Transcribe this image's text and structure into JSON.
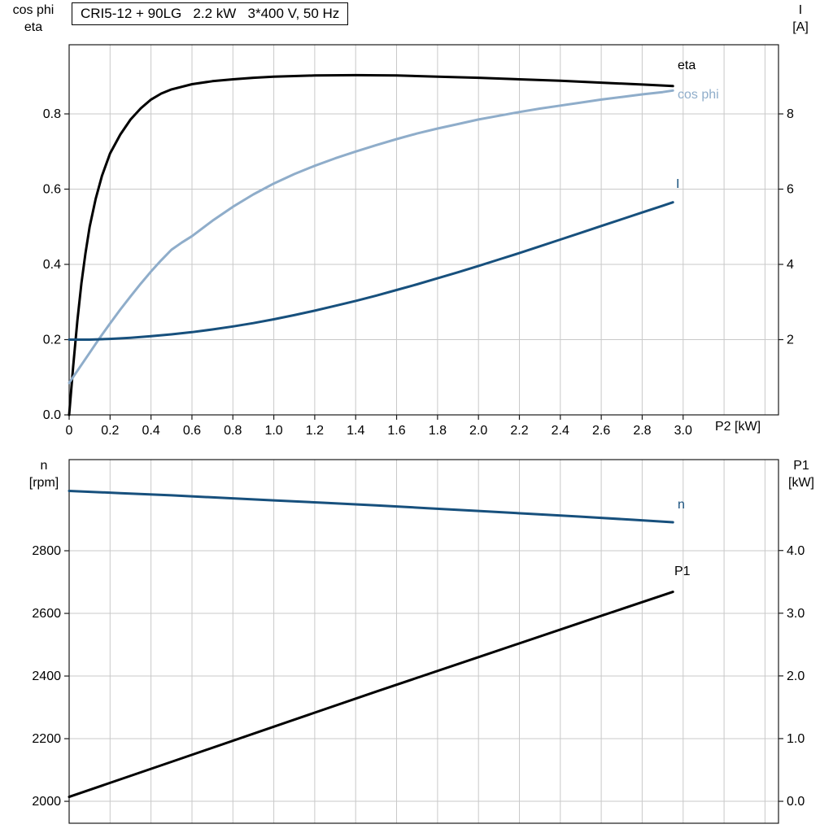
{
  "title": "CRI5-12 + 90LG   2.2 kW   3*400 V, 50 Hz",
  "colors": {
    "curve_black": "#000000",
    "light_blue": "#8fadca",
    "dark_blue": "#17507d",
    "grid": "#c9c9c9",
    "frame": "#1a1a1a",
    "text": "#000000",
    "background": "#ffffff"
  },
  "chart_data": [
    {
      "type": "line",
      "title": "CRI5-12 + 90LG   2.2 kW   3*400 V, 50 Hz",
      "x_axis": {
        "label": "P2 [kW]",
        "range": [
          0,
          3.466
        ],
        "grid_step": 0.2,
        "ticks": {
          "values": [
            0,
            0.2,
            0.4,
            0.6,
            0.8,
            1.0,
            1.2,
            1.4,
            1.6,
            1.8,
            2.0,
            2.2,
            2.4,
            2.6,
            2.8,
            3.0
          ],
          "labels": [
            "0",
            "0.2",
            "0.4",
            "0.6",
            "0.8",
            "1.0",
            "1.2",
            "1.4",
            "1.6",
            "1.8",
            "2.0",
            "2.2",
            "2.4",
            "2.6",
            "2.8",
            "3.0"
          ]
        }
      },
      "left_axis": {
        "label_lines": [
          "cos phi",
          "eta"
        ],
        "range": [
          0,
          0.9838
        ],
        "ticks": {
          "values": [
            0,
            0.2,
            0.4,
            0.6,
            0.8
          ],
          "labels": [
            "0.0",
            "0.2",
            "0.4",
            "0.6",
            "0.8"
          ]
        }
      },
      "right_axis": {
        "label_lines": [
          "I",
          "[A]"
        ],
        "range": [
          0,
          9.838
        ],
        "ticks": {
          "values": [
            2,
            4,
            6,
            8
          ],
          "labels": [
            "2",
            "4",
            "6",
            "8"
          ]
        }
      },
      "series": [
        {
          "name": "eta",
          "label": "eta",
          "axis": "left",
          "color": "curve_black",
          "points": [
            [
              0,
              0
            ],
            [
              0.02,
              0.13
            ],
            [
              0.04,
              0.25
            ],
            [
              0.06,
              0.35
            ],
            [
              0.08,
              0.43
            ],
            [
              0.1,
              0.5
            ],
            [
              0.13,
              0.575
            ],
            [
              0.16,
              0.635
            ],
            [
              0.2,
              0.695
            ],
            [
              0.25,
              0.745
            ],
            [
              0.3,
              0.785
            ],
            [
              0.35,
              0.815
            ],
            [
              0.4,
              0.838
            ],
            [
              0.45,
              0.854
            ],
            [
              0.5,
              0.865
            ],
            [
              0.6,
              0.879
            ],
            [
              0.7,
              0.887
            ],
            [
              0.8,
              0.892
            ],
            [
              0.9,
              0.896
            ],
            [
              1.0,
              0.899
            ],
            [
              1.2,
              0.902
            ],
            [
              1.4,
              0.903
            ],
            [
              1.6,
              0.902
            ],
            [
              1.8,
              0.899
            ],
            [
              2.0,
              0.896
            ],
            [
              2.2,
              0.892
            ],
            [
              2.4,
              0.888
            ],
            [
              2.6,
              0.883
            ],
            [
              2.8,
              0.878
            ],
            [
              2.95,
              0.874
            ]
          ]
        },
        {
          "name": "cosphi",
          "label": "cos phi",
          "axis": "left",
          "color": "light_blue",
          "points": [
            [
              0,
              0.085
            ],
            [
              0.05,
              0.125
            ],
            [
              0.1,
              0.165
            ],
            [
              0.15,
              0.205
            ],
            [
              0.2,
              0.243
            ],
            [
              0.25,
              0.28
            ],
            [
              0.3,
              0.315
            ],
            [
              0.35,
              0.349
            ],
            [
              0.4,
              0.381
            ],
            [
              0.45,
              0.411
            ],
            [
              0.5,
              0.439
            ],
            [
              0.55,
              0.458
            ],
            [
              0.6,
              0.475
            ],
            [
              0.7,
              0.516
            ],
            [
              0.8,
              0.553
            ],
            [
              0.9,
              0.586
            ],
            [
              1.0,
              0.615
            ],
            [
              1.1,
              0.64
            ],
            [
              1.2,
              0.662
            ],
            [
              1.3,
              0.682
            ],
            [
              1.4,
              0.7
            ],
            [
              1.5,
              0.717
            ],
            [
              1.6,
              0.733
            ],
            [
              1.7,
              0.748
            ],
            [
              1.8,
              0.761
            ],
            [
              1.9,
              0.773
            ],
            [
              2.0,
              0.785
            ],
            [
              2.1,
              0.795
            ],
            [
              2.2,
              0.805
            ],
            [
              2.3,
              0.814
            ],
            [
              2.4,
              0.822
            ],
            [
              2.5,
              0.83
            ],
            [
              2.6,
              0.838
            ],
            [
              2.7,
              0.845
            ],
            [
              2.8,
              0.852
            ],
            [
              2.9,
              0.858
            ],
            [
              2.95,
              0.862
            ]
          ]
        },
        {
          "name": "I",
          "label": "I",
          "axis": "right",
          "color": "dark_blue",
          "points": [
            [
              0,
              2.0
            ],
            [
              0.1,
              2.0
            ],
            [
              0.2,
              2.02
            ],
            [
              0.3,
              2.05
            ],
            [
              0.4,
              2.09
            ],
            [
              0.5,
              2.14
            ],
            [
              0.6,
              2.2
            ],
            [
              0.7,
              2.27
            ],
            [
              0.8,
              2.35
            ],
            [
              0.9,
              2.44
            ],
            [
              1.0,
              2.54
            ],
            [
              1.1,
              2.65
            ],
            [
              1.2,
              2.77
            ],
            [
              1.3,
              2.9
            ],
            [
              1.4,
              3.03
            ],
            [
              1.5,
              3.17
            ],
            [
              1.6,
              3.32
            ],
            [
              1.7,
              3.47
            ],
            [
              1.8,
              3.63
            ],
            [
              1.9,
              3.79
            ],
            [
              2.0,
              3.96
            ],
            [
              2.1,
              4.13
            ],
            [
              2.2,
              4.3
            ],
            [
              2.3,
              4.48
            ],
            [
              2.4,
              4.66
            ],
            [
              2.5,
              4.84
            ],
            [
              2.6,
              5.02
            ],
            [
              2.7,
              5.2
            ],
            [
              2.8,
              5.38
            ],
            [
              2.9,
              5.56
            ],
            [
              2.95,
              5.65
            ]
          ]
        }
      ]
    },
    {
      "type": "line",
      "x_axis": {
        "label": "",
        "range": [
          0,
          3.466
        ],
        "grid_step": 0.2
      },
      "left_axis": {
        "label_lines": [
          "n",
          "[rpm]"
        ],
        "range": [
          1930,
          3091
        ],
        "ticks": {
          "values": [
            2000,
            2200,
            2400,
            2600,
            2800
          ],
          "labels": [
            "2000",
            "2200",
            "2400",
            "2600",
            "2800"
          ]
        }
      },
      "right_axis": {
        "label_lines": [
          "P1",
          "[kW]"
        ],
        "range": [
          -0.35,
          5.45
        ],
        "ticks": {
          "values": [
            0,
            1,
            2,
            3,
            4
          ],
          "labels": [
            "0.0",
            "1.0",
            "2.0",
            "3.0",
            "4.0"
          ]
        }
      },
      "series": [
        {
          "name": "n",
          "label": "n",
          "axis": "left",
          "color": "dark_blue",
          "points": [
            [
              0,
              2991
            ],
            [
              0.25,
              2984
            ],
            [
              0.5,
              2977
            ],
            [
              0.75,
              2969
            ],
            [
              1.0,
              2961
            ],
            [
              1.25,
              2953
            ],
            [
              1.5,
              2945
            ],
            [
              1.75,
              2936
            ],
            [
              2.0,
              2927
            ],
            [
              2.25,
              2918
            ],
            [
              2.5,
              2909
            ],
            [
              2.75,
              2899
            ],
            [
              2.95,
              2891
            ]
          ]
        },
        {
          "name": "P1",
          "label": "P1",
          "axis": "right",
          "color": "curve_black",
          "points": [
            [
              0,
              0.07
            ],
            [
              0.5,
              0.63
            ],
            [
              1.0,
              1.19
            ],
            [
              1.5,
              1.75
            ],
            [
              2.0,
              2.3
            ],
            [
              2.5,
              2.85
            ],
            [
              2.95,
              3.34
            ]
          ]
        }
      ]
    }
  ]
}
